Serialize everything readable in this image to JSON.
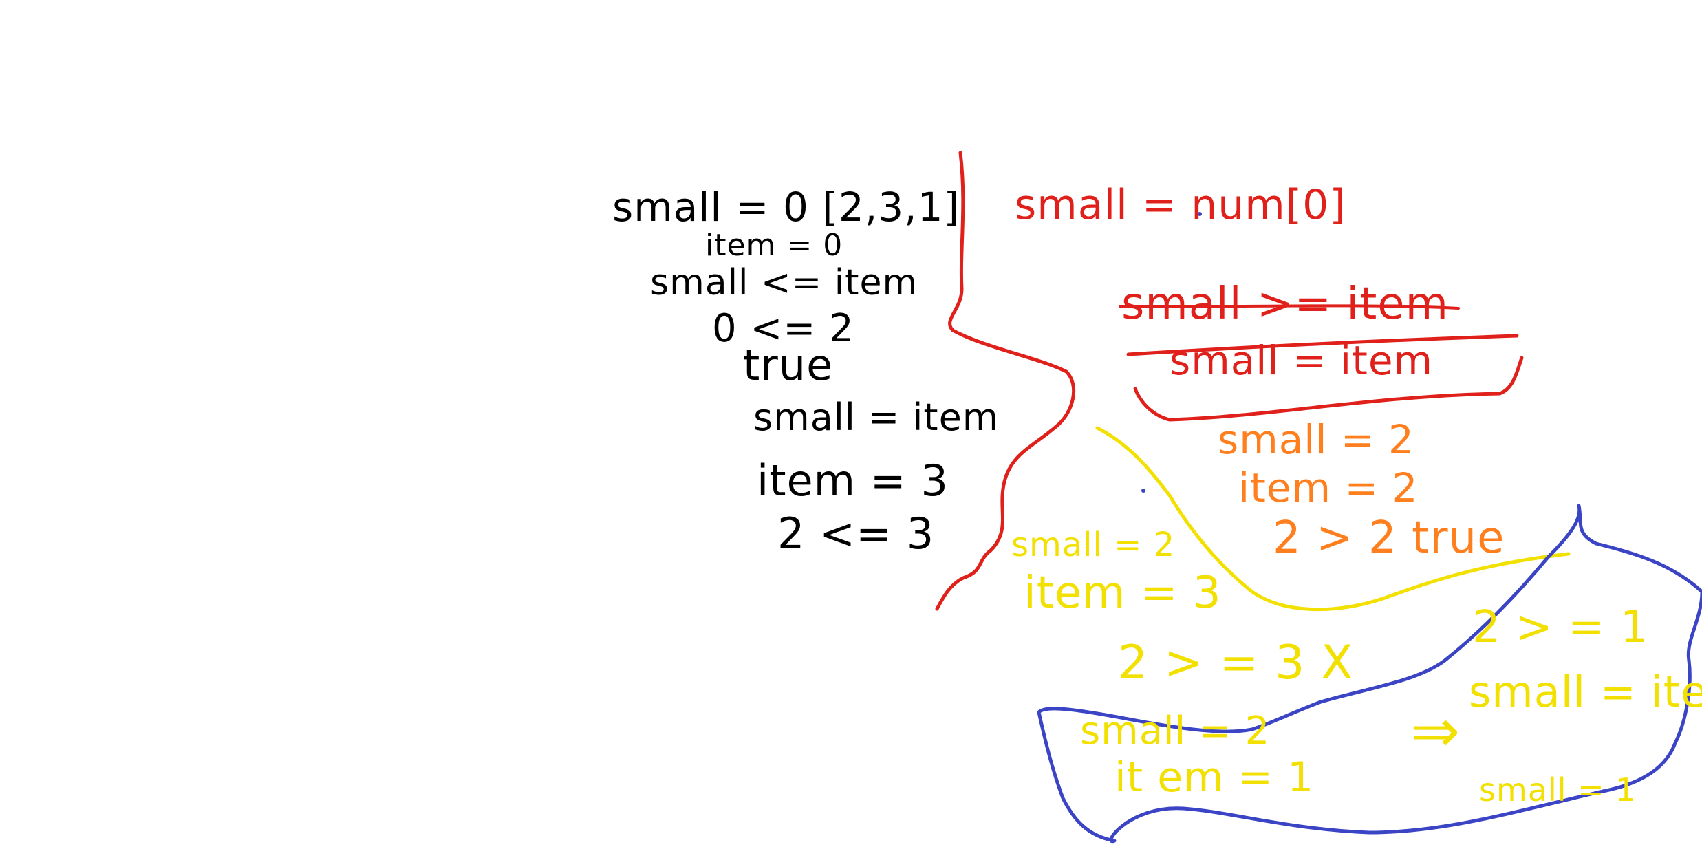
{
  "canvas": {
    "background": "#ffffff"
  },
  "colors": {
    "black": "#000000",
    "red": "#e0201a",
    "orange": "#ff7f1e",
    "yellow": "#f2e000",
    "blue": "#3a44c4"
  },
  "notes": {
    "black": [
      "small = 0  [2,3,1]",
      "item = 0",
      "small <= item",
      "0 <= 2",
      "true",
      "small = item",
      "item = 3",
      "2 <= 3"
    ],
    "red": [
      "small =  num[0]",
      "small >= item",
      "small =   item"
    ],
    "orange": [
      "small = 2",
      "item = 2",
      "2 > 2   true"
    ],
    "yellow": [
      "small = 2",
      "item = 3",
      "2 > = 3  X",
      "small = 2",
      "it em = 1",
      "⇒",
      "2 > = 1",
      "small = item",
      "small = 1"
    ]
  }
}
